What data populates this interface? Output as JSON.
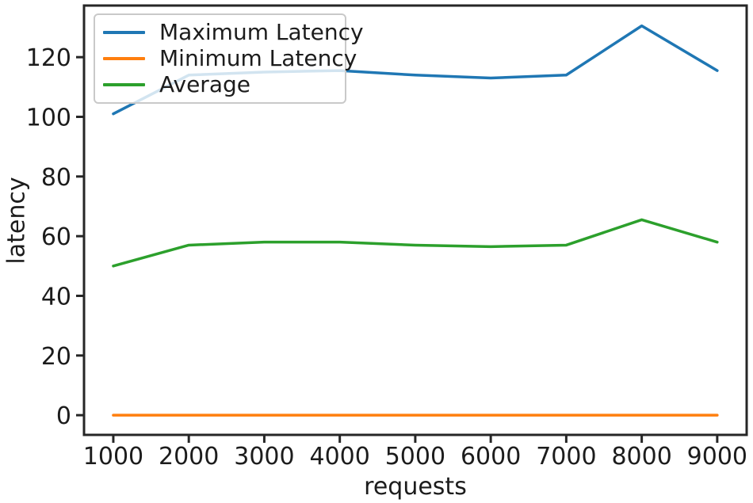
{
  "figure": {
    "background": "#ffffff",
    "spine_color": "#262626",
    "tick_color": "#262626",
    "text_color": "#1c1c1c",
    "legend_border_color": "#c9c9c9"
  },
  "chart_data": {
    "type": "line",
    "title": "",
    "xlabel": "requests",
    "ylabel": "latency",
    "x": [
      1000,
      2000,
      3000,
      4000,
      5000,
      6000,
      7000,
      8000,
      9000
    ],
    "series": [
      {
        "name": "Maximum Latency",
        "color": "#1f77b4",
        "values": [
          101,
          114,
          115,
          115.5,
          114,
          113,
          114,
          130.5,
          115.5
        ]
      },
      {
        "name": "Minimum Latency",
        "color": "#ff7f0e",
        "values": [
          0,
          0,
          0,
          0,
          0,
          0,
          0,
          0,
          0
        ]
      },
      {
        "name": "Average",
        "color": "#2ca02c",
        "values": [
          50,
          57,
          58,
          58,
          57,
          56.5,
          57,
          65.5,
          58
        ]
      }
    ],
    "xticks": [
      1000,
      2000,
      3000,
      4000,
      5000,
      6000,
      7000,
      8000,
      9000
    ],
    "yticks": [
      0,
      20,
      40,
      60,
      80,
      100,
      120
    ],
    "xlim": [
      612,
      9390
    ],
    "ylim": [
      -6.6,
      137.3
    ],
    "grid": false,
    "legend_position": "upper left",
    "legend_entries": [
      "Maximum Latency",
      "Minimum Latency",
      "Average"
    ]
  }
}
